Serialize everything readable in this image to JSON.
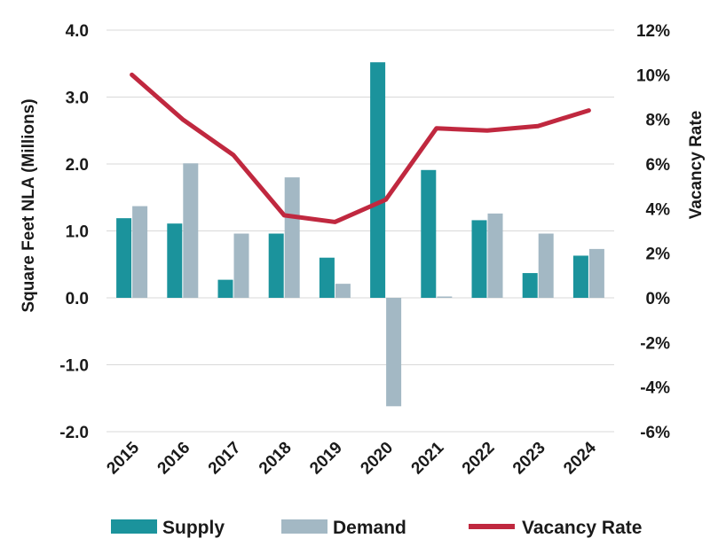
{
  "chart_data": {
    "type": "bar",
    "categories": [
      "2015",
      "2016",
      "2017",
      "2018",
      "2019",
      "2020",
      "2021",
      "2022",
      "2023",
      "2024"
    ],
    "series": [
      {
        "name": "Supply",
        "type": "bar",
        "axis": "left",
        "color": "#1b939c",
        "values": [
          1.19,
          1.11,
          0.27,
          0.96,
          0.6,
          3.52,
          1.91,
          1.16,
          0.37,
          0.63
        ]
      },
      {
        "name": "Demand",
        "type": "bar",
        "axis": "left",
        "color": "#a3b8c4",
        "values": [
          1.37,
          2.01,
          0.96,
          1.8,
          0.21,
          -1.62,
          0.02,
          1.26,
          0.96,
          0.73
        ]
      },
      {
        "name": "Vacancy Rate",
        "type": "line",
        "axis": "right",
        "color": "#c0283f",
        "values": [
          10.0,
          8.0,
          6.4,
          3.7,
          3.4,
          4.4,
          7.6,
          7.5,
          7.7,
          8.4
        ]
      }
    ],
    "ylabel": "Square Feet NLA (Millions)",
    "y2label": "Vacancy Rate",
    "ylim": [
      -2.0,
      4.0
    ],
    "y2lim": [
      -6,
      12
    ],
    "yticks": [
      "-2.0",
      "-1.0",
      "0.0",
      "1.0",
      "2.0",
      "3.0",
      "4.0"
    ],
    "y2ticks": [
      "-6%",
      "-4%",
      "-2%",
      "0%",
      "2%",
      "4%",
      "6%",
      "8%",
      "10%",
      "12%"
    ],
    "grid": "horizontal",
    "legend_position": "bottom"
  }
}
